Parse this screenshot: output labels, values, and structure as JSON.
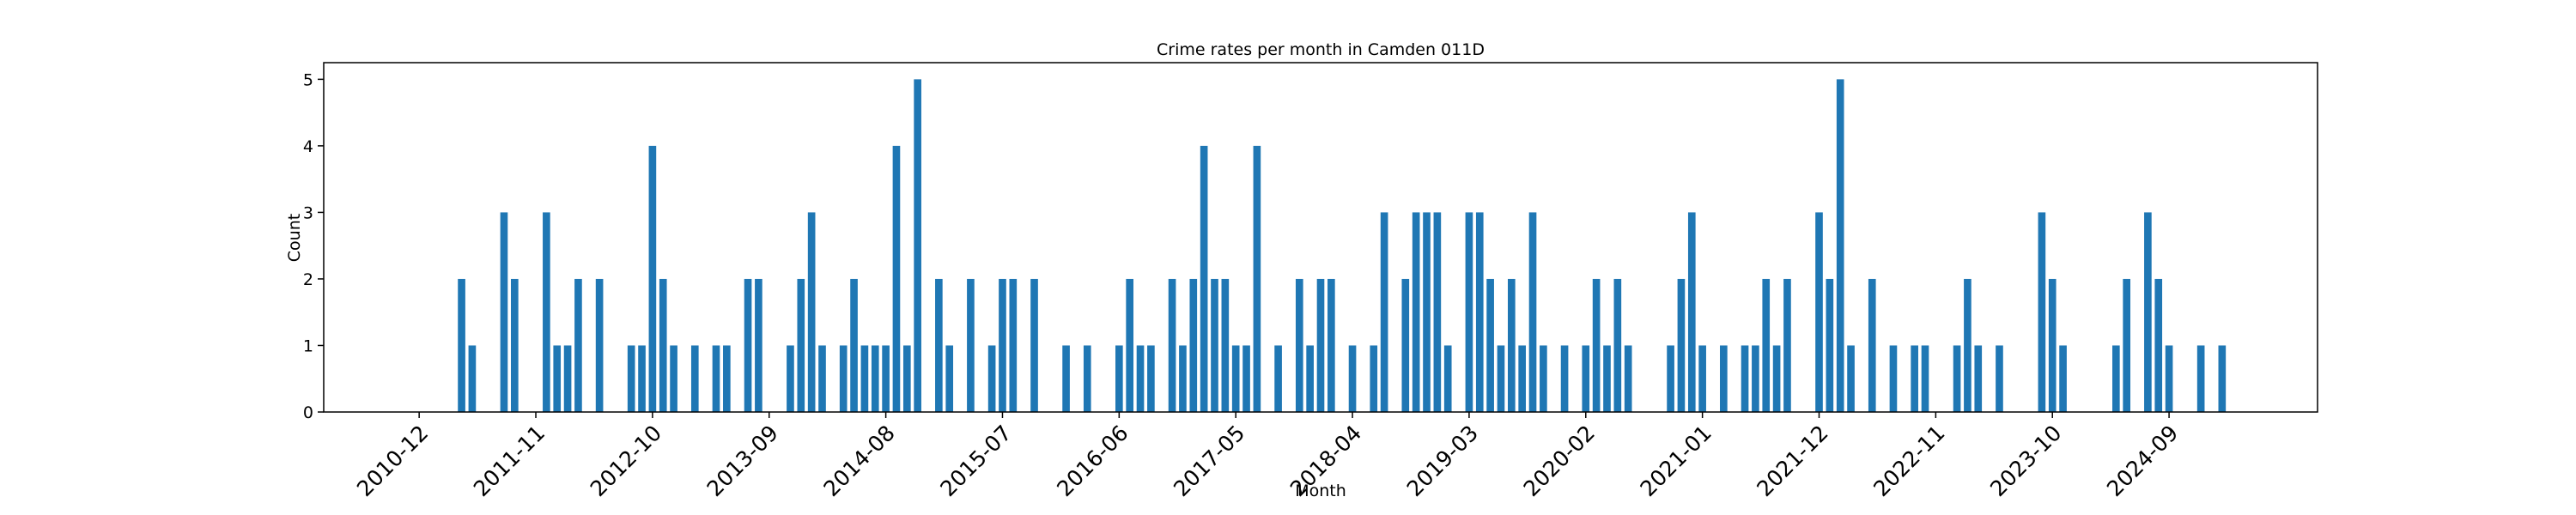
{
  "chart_data": {
    "type": "bar",
    "title": "Crime rates per month in Camden 011D",
    "xlabel": "Month",
    "ylabel": "Count",
    "color": "#1f77b4",
    "x": [
      "2011-04",
      "2011-05",
      "2011-08",
      "2011-09",
      "2011-12",
      "2012-01",
      "2012-02",
      "2012-03",
      "2012-05",
      "2012-08",
      "2012-09",
      "2012-10",
      "2012-11",
      "2012-12",
      "2013-02",
      "2013-04",
      "2013-05",
      "2013-07",
      "2013-08",
      "2013-11",
      "2013-12",
      "2014-01",
      "2014-02",
      "2014-04",
      "2014-05",
      "2014-06",
      "2014-07",
      "2014-08",
      "2014-09",
      "2014-10",
      "2014-11",
      "2015-01",
      "2015-02",
      "2015-04",
      "2015-06",
      "2015-07",
      "2015-08",
      "2015-10",
      "2016-01",
      "2016-03",
      "2016-06",
      "2016-07",
      "2016-08",
      "2016-09",
      "2016-11",
      "2016-12",
      "2017-01",
      "2017-02",
      "2017-03",
      "2017-04",
      "2017-05",
      "2017-06",
      "2017-07",
      "2017-09",
      "2017-11",
      "2017-12",
      "2018-01",
      "2018-02",
      "2018-04",
      "2018-06",
      "2018-07",
      "2018-09",
      "2018-10",
      "2018-11",
      "2018-12",
      "2019-01",
      "2019-03",
      "2019-04",
      "2019-05",
      "2019-06",
      "2019-07",
      "2019-08",
      "2019-09",
      "2019-10",
      "2019-12",
      "2020-02",
      "2020-03",
      "2020-04",
      "2020-05",
      "2020-06",
      "2020-10",
      "2020-11",
      "2020-12",
      "2021-01",
      "2021-03",
      "2021-05",
      "2021-06",
      "2021-07",
      "2021-08",
      "2021-09",
      "2021-12",
      "2022-01",
      "2022-02",
      "2022-03",
      "2022-05",
      "2022-07",
      "2022-09",
      "2022-10",
      "2023-01",
      "2023-02",
      "2023-03",
      "2023-05",
      "2023-09",
      "2023-10",
      "2023-11",
      "2024-04",
      "2024-05",
      "2024-07",
      "2024-08",
      "2024-09",
      "2024-12",
      "2025-02"
    ],
    "values": [
      2,
      1,
      3,
      2,
      3,
      1,
      1,
      2,
      2,
      1,
      1,
      4,
      2,
      1,
      1,
      1,
      1,
      2,
      2,
      1,
      2,
      3,
      1,
      1,
      2,
      1,
      1,
      1,
      4,
      1,
      5,
      2,
      1,
      2,
      1,
      2,
      2,
      2,
      1,
      1,
      1,
      2,
      1,
      1,
      2,
      1,
      2,
      4,
      2,
      2,
      1,
      1,
      4,
      1,
      2,
      1,
      2,
      2,
      1,
      1,
      3,
      2,
      3,
      3,
      3,
      1,
      3,
      3,
      2,
      1,
      2,
      1,
      3,
      1,
      1,
      1,
      2,
      1,
      2,
      1,
      1,
      2,
      3,
      1,
      1,
      1,
      1,
      2,
      1,
      2,
      3,
      2,
      5,
      1,
      2,
      1,
      1,
      1,
      1,
      2,
      1,
      1,
      3,
      2,
      1,
      1,
      2,
      3,
      2,
      1,
      1,
      1
    ],
    "xlim": [
      "2010-03",
      "2025-11"
    ],
    "xticks": [
      "2010-12",
      "2011-11",
      "2012-10",
      "2013-09",
      "2014-08",
      "2015-07",
      "2016-06",
      "2017-05",
      "2018-04",
      "2019-03",
      "2020-02",
      "2021-01",
      "2021-12",
      "2022-11",
      "2023-10",
      "2024-09"
    ],
    "ylim": [
      0,
      5.25
    ],
    "yticks": [
      0,
      1,
      2,
      3,
      4,
      5
    ]
  }
}
